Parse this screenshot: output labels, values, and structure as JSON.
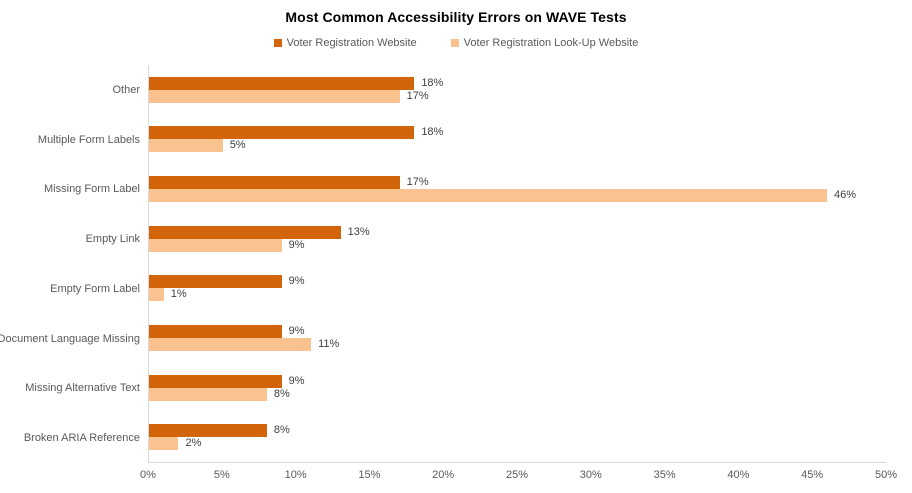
{
  "chart_data": {
    "type": "bar",
    "orientation": "horizontal",
    "title": "Most Common Accessibility Errors on WAVE Tests",
    "categories": [
      "Other",
      "Multiple Form Labels",
      "Missing Form Label",
      "Empty Link",
      "Empty Form Label",
      "Document Language Missing",
      "Missing Alternative Text",
      "Broken ARIA Reference"
    ],
    "series": [
      {
        "name": "Voter Registration Website",
        "color": "#d2650a",
        "values": [
          18,
          18,
          17,
          13,
          9,
          9,
          9,
          8
        ]
      },
      {
        "name": "Voter Registration Look-Up Website",
        "color": "#fac28f",
        "values": [
          17,
          5,
          46,
          9,
          1,
          11,
          8,
          2
        ]
      }
    ],
    "value_suffix": "%",
    "data_labels": true,
    "xlabel": "",
    "ylabel": "",
    "xlim": [
      0,
      50
    ],
    "x_ticks": [
      "0%",
      "5%",
      "10%",
      "15%",
      "20%",
      "25%",
      "30%",
      "35%",
      "40%",
      "45%",
      "50%"
    ],
    "grid": false,
    "legend_position": "top-center"
  },
  "colors": {
    "series1": "#d2650a",
    "series2": "#fac28f",
    "axis_line": "#d9d9d9",
    "tick_text": "#595959",
    "category_text": "#595959",
    "data_label_text": "#404040",
    "title_text": "#000000",
    "background": "#ffffff"
  }
}
